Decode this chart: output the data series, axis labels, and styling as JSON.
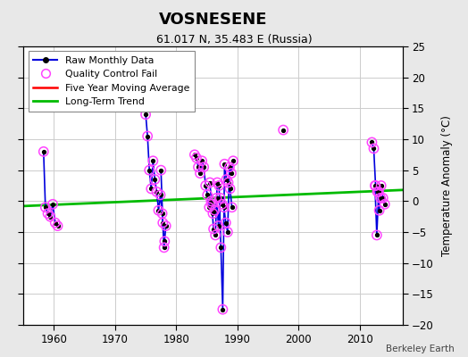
{
  "title": "VOSNESENE",
  "subtitle": "61.017 N, 35.483 E (Russia)",
  "ylabel": "Temperature Anomaly (°C)",
  "attribution": "Berkeley Earth",
  "xlim": [
    1955,
    2017
  ],
  "ylim": [
    -20,
    25
  ],
  "yticks": [
    -20,
    -15,
    -10,
    -5,
    0,
    5,
    10,
    15,
    20,
    25
  ],
  "xticks": [
    1960,
    1970,
    1980,
    1990,
    2000,
    2010
  ],
  "fig_bg": "#e8e8e8",
  "plot_bg": "#ffffff",
  "grid_color": "#cccccc",
  "raw_segments": [
    {
      "x": [
        1958.3,
        1958.6,
        1959.0,
        1959.4,
        1959.8,
        1960.2,
        1960.6
      ],
      "y": [
        8.0,
        -1.0,
        -2.0,
        -2.5,
        -0.5,
        -3.5,
        -4.0
      ]
    },
    {
      "x": [
        1975.0,
        1975.3,
        1975.6,
        1975.9,
        1976.2,
        1976.5,
        1976.8,
        1977.1,
        1977.4,
        1977.7,
        1978.0,
        1978.3
      ],
      "y": [
        14.0,
        10.5,
        5.0,
        2.0,
        6.5,
        3.5,
        1.5,
        -1.5,
        1.0,
        -2.0,
        -7.5,
        -4.0
      ]
    },
    {
      "x": [
        1977.5,
        1977.8,
        1978.1
      ],
      "y": [
        5.0,
        -3.5,
        -6.5
      ]
    },
    {
      "x": [
        1983.0,
        1983.3,
        1983.6,
        1983.9,
        1984.2,
        1984.5,
        1984.8,
        1985.1,
        1985.4,
        1985.7,
        1986.0,
        1986.3,
        1986.6,
        1986.9,
        1987.2,
        1987.5,
        1987.8,
        1988.1,
        1988.4,
        1988.7,
        1989.0,
        1989.3
      ],
      "y": [
        7.5,
        7.0,
        5.5,
        4.5,
        6.5,
        5.5,
        2.5,
        1.0,
        -1.0,
        0.0,
        -2.0,
        -1.5,
        0.5,
        -4.0,
        0.5,
        -0.5,
        -1.0,
        -3.5,
        -5.0,
        5.5,
        4.5,
        6.5
      ]
    },
    {
      "x": [
        1985.5,
        1985.8,
        1986.1,
        1986.4,
        1986.7,
        1987.0,
        1987.3,
        1987.6,
        1987.9,
        1988.2,
        1988.5,
        1988.8,
        1989.1
      ],
      "y": [
        3.0,
        -0.5,
        -4.5,
        -5.5,
        3.0,
        2.5,
        -7.5,
        -17.5,
        6.0,
        3.5,
        3.0,
        2.0,
        -1.0
      ]
    },
    {
      "x": [
        2012.0,
        2012.3,
        2012.6,
        2012.9,
        2013.2,
        2013.5,
        2013.8,
        2014.1
      ],
      "y": [
        9.5,
        8.5,
        2.5,
        1.5,
        -1.5,
        2.5,
        0.5,
        -0.5
      ]
    },
    {
      "x": [
        2012.5,
        2012.8,
        2013.1,
        2013.4
      ],
      "y": [
        2.5,
        -5.5,
        1.5,
        0.5
      ]
    }
  ],
  "all_points_x": [
    1958.3,
    1958.6,
    1959.0,
    1959.4,
    1959.8,
    1960.2,
    1960.6,
    1975.0,
    1975.3,
    1975.6,
    1975.9,
    1976.2,
    1976.5,
    1976.8,
    1977.1,
    1977.4,
    1977.7,
    1978.0,
    1978.3,
    1977.5,
    1977.8,
    1978.1,
    1983.0,
    1983.3,
    1983.6,
    1983.9,
    1984.2,
    1984.5,
    1984.8,
    1985.1,
    1985.4,
    1985.7,
    1986.0,
    1986.3,
    1986.6,
    1986.9,
    1987.2,
    1987.5,
    1987.8,
    1988.1,
    1988.4,
    1988.7,
    1989.0,
    1989.3,
    1985.5,
    1985.8,
    1986.1,
    1986.4,
    1986.7,
    1987.0,
    1987.3,
    1987.6,
    1987.9,
    1988.2,
    1988.5,
    1988.8,
    1989.1,
    1997.5,
    2012.0,
    2012.3,
    2012.6,
    2012.9,
    2013.2,
    2013.5,
    2013.8,
    2014.1,
    2012.5,
    2012.8,
    2013.1,
    2013.4
  ],
  "all_points_y": [
    8.0,
    -1.0,
    -2.0,
    -2.5,
    -0.5,
    -3.5,
    -4.0,
    14.0,
    10.5,
    5.0,
    2.0,
    6.5,
    3.5,
    1.5,
    -1.5,
    1.0,
    -2.0,
    -7.5,
    -4.0,
    5.0,
    -3.5,
    -6.5,
    7.5,
    7.0,
    5.5,
    4.5,
    6.5,
    5.5,
    2.5,
    1.0,
    -1.0,
    0.0,
    -2.0,
    -1.5,
    0.5,
    -4.0,
    0.5,
    -0.5,
    -1.0,
    -3.5,
    -5.0,
    5.5,
    4.5,
    6.5,
    3.0,
    -0.5,
    -4.5,
    -5.5,
    3.0,
    2.5,
    -7.5,
    -17.5,
    6.0,
    3.5,
    3.0,
    2.0,
    -1.0,
    11.5,
    9.5,
    8.5,
    2.5,
    1.5,
    -1.5,
    2.5,
    0.5,
    -0.5,
    2.5,
    -5.5,
    1.5,
    0.5
  ],
  "trend_x": [
    1955,
    2017
  ],
  "trend_y": [
    -0.8,
    1.8
  ],
  "colors": {
    "raw_line": "#0000dd",
    "raw_dot": "#000000",
    "qc_fail": "#ff44ff",
    "moving_avg": "#ff0000",
    "trend": "#00bb00"
  }
}
